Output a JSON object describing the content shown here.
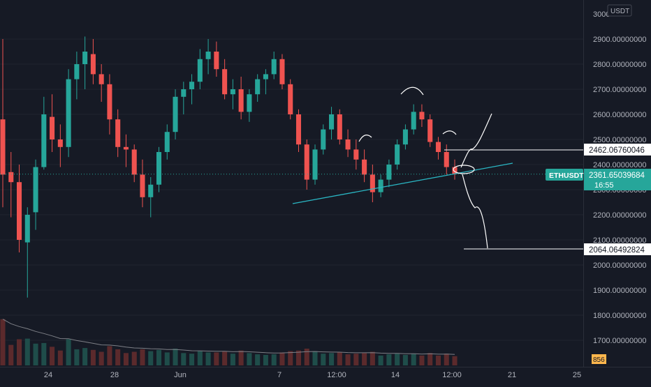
{
  "colors": {
    "background": "#161a25",
    "up": "#26a69a",
    "down": "#ef5350",
    "grid": "#2a2e39",
    "axis_text": "#b2b5be",
    "price_tag": "#26a69a",
    "drawing": "#ffffff",
    "trendline": "#2ab7c4",
    "volume_up": "#1f4d4a",
    "volume_down": "#5b2a2c",
    "volume_ma": "#7d7f86"
  },
  "currency_badge": "USDT",
  "price_axis": {
    "top_label": "3000",
    "labels": [
      "2900.00000000",
      "2800.00000000",
      "2700.00000000",
      "2600.00000000",
      "2500.00000000",
      "2400.00000000",
      "2300.00000000",
      "2200.00000000",
      "2100.00000000",
      "2000.00000000",
      "1900.00000000",
      "1800.00000000",
      "1700.00000000"
    ]
  },
  "time_axis": {
    "labels": [
      "24",
      "28",
      "Jun",
      "7",
      "12:00",
      "14",
      "12:00",
      "21",
      "25"
    ]
  },
  "current_price": {
    "symbol": "ETHUSDT",
    "price": "2361.65039684",
    "countdown": "16:55"
  },
  "level_labels": {
    "upper": "2462.06760046",
    "lower": "2064.06492824"
  },
  "volume_label": "856",
  "chart_data": {
    "type": "candlestick",
    "symbol": "ETHUSDT",
    "quote_currency": "USDT",
    "y_range": [
      1640,
      3000
    ],
    "x_ticks": [
      "24",
      "28",
      "Jun",
      "7",
      "12:00",
      "14",
      "12:00",
      "21",
      "25"
    ],
    "current_price": 2361.65039684,
    "horizontal_levels": [
      2462.06760046,
      2064.06492824
    ],
    "trendline": {
      "from_price": 2270,
      "to_price": 2410
    },
    "volume_last": 856,
    "candles_ohlc": [
      [
        2580,
        2900,
        2230,
        2360
      ],
      [
        2370,
        2450,
        2190,
        2330
      ],
      [
        2330,
        2400,
        2050,
        2100
      ],
      [
        2090,
        2230,
        1870,
        2200
      ],
      [
        2210,
        2420,
        2140,
        2390
      ],
      [
        2390,
        2670,
        2380,
        2600
      ],
      [
        2590,
        2680,
        2450,
        2500
      ],
      [
        2500,
        2560,
        2390,
        2470
      ],
      [
        2470,
        2780,
        2430,
        2740
      ],
      [
        2740,
        2850,
        2660,
        2800
      ],
      [
        2800,
        2910,
        2700,
        2850
      ],
      [
        2840,
        2900,
        2720,
        2760
      ],
      [
        2760,
        2800,
        2650,
        2720
      ],
      [
        2720,
        2760,
        2520,
        2580
      ],
      [
        2580,
        2620,
        2430,
        2470
      ],
      [
        2470,
        2520,
        2390,
        2460
      ],
      [
        2460,
        2480,
        2330,
        2360
      ],
      [
        2360,
        2420,
        2230,
        2270
      ],
      [
        2270,
        2350,
        2190,
        2320
      ],
      [
        2320,
        2470,
        2290,
        2450
      ],
      [
        2450,
        2560,
        2420,
        2530
      ],
      [
        2530,
        2700,
        2500,
        2670
      ],
      [
        2670,
        2730,
        2600,
        2700
      ],
      [
        2700,
        2760,
        2640,
        2730
      ],
      [
        2730,
        2860,
        2700,
        2820
      ],
      [
        2820,
        2900,
        2760,
        2850
      ],
      [
        2850,
        2890,
        2750,
        2780
      ],
      [
        2780,
        2820,
        2660,
        2680
      ],
      [
        2680,
        2740,
        2620,
        2700
      ],
      [
        2700,
        2750,
        2580,
        2610
      ],
      [
        2610,
        2700,
        2570,
        2680
      ],
      [
        2680,
        2760,
        2650,
        2740
      ],
      [
        2740,
        2780,
        2680,
        2760
      ],
      [
        2760,
        2850,
        2740,
        2820
      ],
      [
        2820,
        2840,
        2700,
        2720
      ],
      [
        2720,
        2740,
        2580,
        2600
      ],
      [
        2600,
        2620,
        2450,
        2480
      ],
      [
        2480,
        2500,
        2300,
        2340
      ],
      [
        2340,
        2480,
        2320,
        2460
      ],
      [
        2460,
        2560,
        2440,
        2540
      ],
      [
        2540,
        2630,
        2500,
        2600
      ],
      [
        2600,
        2620,
        2480,
        2500
      ],
      [
        2500,
        2540,
        2430,
        2460
      ],
      [
        2460,
        2500,
        2380,
        2420
      ],
      [
        2420,
        2460,
        2330,
        2360
      ],
      [
        2360,
        2400,
        2250,
        2290
      ],
      [
        2290,
        2360,
        2270,
        2340
      ],
      [
        2340,
        2420,
        2310,
        2400
      ],
      [
        2400,
        2500,
        2380,
        2480
      ],
      [
        2480,
        2560,
        2460,
        2540
      ],
      [
        2540,
        2640,
        2520,
        2610
      ],
      [
        2610,
        2640,
        2550,
        2580
      ],
      [
        2580,
        2600,
        2470,
        2490
      ],
      [
        2490,
        2510,
        2420,
        2450
      ],
      [
        2450,
        2480,
        2360,
        2390
      ],
      [
        2390,
        2420,
        2340,
        2362
      ]
    ]
  }
}
